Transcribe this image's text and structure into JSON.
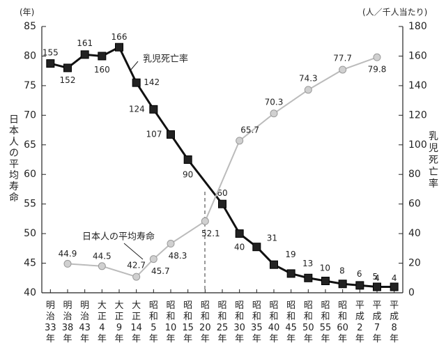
{
  "chart_data": {
    "type": "line",
    "y_unit": "(年)",
    "y2_unit": "(人／千人当たり)",
    "ylabel": "日本人の平均寿命",
    "y2label": "乳児死亡率",
    "categories": [
      "明治33年",
      "明治38年",
      "明治43年",
      "大正4年",
      "大正9年",
      "大正14年",
      "昭和5年",
      "昭和10年",
      "昭和15年",
      "昭和20年",
      "昭和25年",
      "昭和30年",
      "昭和35年",
      "昭和40年",
      "昭和45年",
      "昭和50年",
      "昭和55年",
      "昭和60年",
      "平成2年",
      "平成7年",
      "平成8年"
    ],
    "ylim": [
      40,
      85
    ],
    "yticks": [
      40,
      45,
      50,
      55,
      60,
      65,
      70,
      75,
      80,
      85
    ],
    "y2lim": [
      0,
      180
    ],
    "y2ticks": [
      0,
      20,
      40,
      60,
      80,
      100,
      120,
      140,
      160,
      180
    ],
    "series": [
      {
        "name": "乳児死亡率",
        "color": "#111111",
        "axis": "y2",
        "values": [
          155,
          152,
          161,
          160,
          166,
          142,
          124,
          107,
          90,
          null,
          60,
          40,
          31,
          19,
          13,
          10,
          8,
          6,
          5,
          4,
          4
        ]
      },
      {
        "name": "日本人の平均寿命",
        "color": "#bbbbbb",
        "values": [
          null,
          44.9,
          null,
          44.5,
          null,
          42.7,
          45.7,
          48.3,
          null,
          52.1,
          null,
          65.7,
          null,
          70.3,
          null,
          74.3,
          null,
          77.7,
          null,
          79.8,
          null
        ]
      }
    ]
  }
}
